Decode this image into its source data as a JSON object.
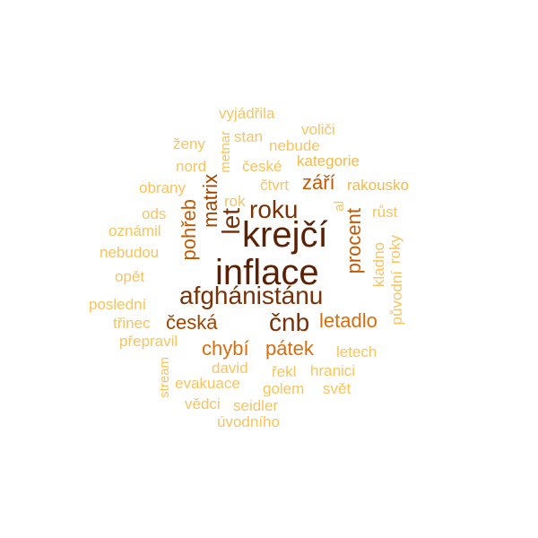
{
  "cloud": {
    "words": [
      {
        "text": "inflace",
        "color": "#5b2105"
      },
      {
        "text": "krejčí",
        "color": "#5b2105"
      },
      {
        "text": "afghánistánu",
        "color": "#7a3107"
      },
      {
        "text": "roku",
        "color": "#7a3107"
      },
      {
        "text": "let",
        "color": "#7a3107"
      },
      {
        "text": "čnb",
        "color": "#7a3107"
      },
      {
        "text": "česká",
        "color": "#a04500"
      },
      {
        "text": "matrix",
        "color": "#a04500"
      },
      {
        "text": "pohřeb",
        "color": "#c25a05"
      },
      {
        "text": "září",
        "color": "#c25a05"
      },
      {
        "text": "procent",
        "color": "#c25a05"
      },
      {
        "text": "letadlo",
        "color": "#d76e0e"
      },
      {
        "text": "chybí",
        "color": "#d76e0e"
      },
      {
        "text": "pátek",
        "color": "#d76e0e"
      },
      {
        "text": "kategorie",
        "color": "#f4b94c"
      },
      {
        "text": "rakousko",
        "color": "#f4b94c"
      },
      {
        "text": "vyjádřila",
        "color": "#f7c45f"
      },
      {
        "text": "voliči",
        "color": "#f7c45f"
      },
      {
        "text": "stan",
        "color": "#f7c45f"
      },
      {
        "text": "ženy",
        "color": "#f7c45f"
      },
      {
        "text": "nebude",
        "color": "#f7c45f"
      },
      {
        "text": "metnar",
        "color": "#f7c45f"
      },
      {
        "text": "nord",
        "color": "#f7c45f"
      },
      {
        "text": "české",
        "color": "#f7c45f"
      },
      {
        "text": "obrany",
        "color": "#f7c45f"
      },
      {
        "text": "čtvrt",
        "color": "#f7c45f"
      },
      {
        "text": "rok",
        "color": "#f7c45f"
      },
      {
        "text": "ods",
        "color": "#f7c45f"
      },
      {
        "text": "al",
        "color": "#f7c45f"
      },
      {
        "text": "růst",
        "color": "#f7c45f"
      },
      {
        "text": "oznámil",
        "color": "#f7c45f"
      },
      {
        "text": "nebudou",
        "color": "#f7c45f"
      },
      {
        "text": "kladno",
        "color": "#f7c45f"
      },
      {
        "text": "roky",
        "color": "#f7c45f"
      },
      {
        "text": "opět",
        "color": "#f7c45f"
      },
      {
        "text": "původní",
        "color": "#f7c45f"
      },
      {
        "text": "poslední",
        "color": "#f7c45f"
      },
      {
        "text": "třinec",
        "color": "#f7c45f"
      },
      {
        "text": "přepravil",
        "color": "#f7c45f"
      },
      {
        "text": "letech",
        "color": "#f7c45f"
      },
      {
        "text": "david",
        "color": "#f7c45f"
      },
      {
        "text": "řekl",
        "color": "#f7c45f"
      },
      {
        "text": "hranici",
        "color": "#f7c45f"
      },
      {
        "text": "stream",
        "color": "#f7c45f"
      },
      {
        "text": "evakuace",
        "color": "#f7c45f"
      },
      {
        "text": "golem",
        "color": "#f7c45f"
      },
      {
        "text": "svět",
        "color": "#f7c45f"
      },
      {
        "text": "vědci",
        "color": "#f7c45f"
      },
      {
        "text": "seidler",
        "color": "#f7c45f"
      },
      {
        "text": "úvodního",
        "color": "#f7c45f"
      }
    ]
  }
}
